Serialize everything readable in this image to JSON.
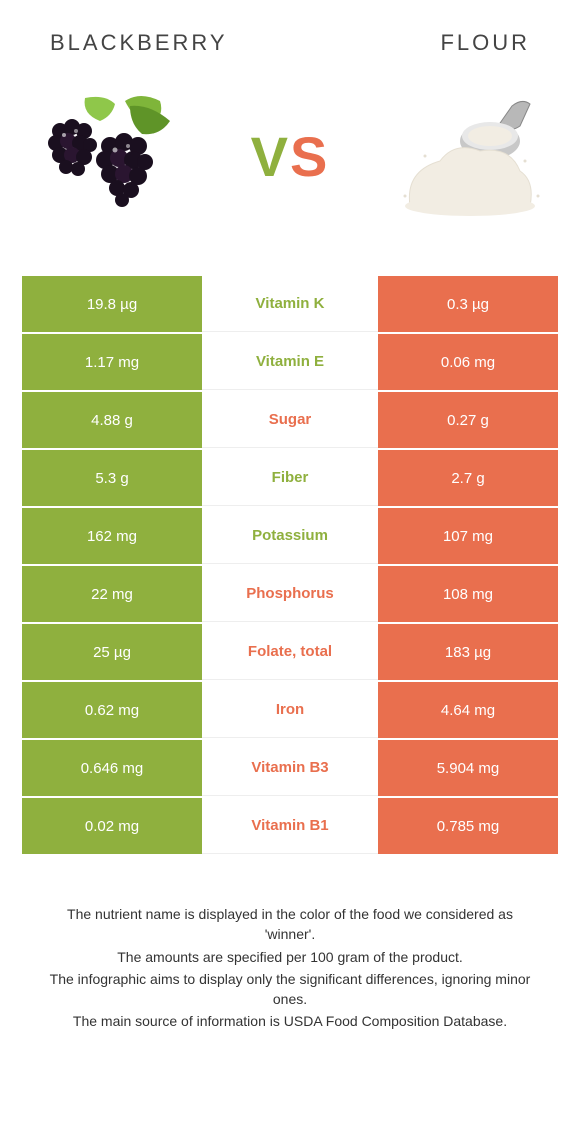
{
  "header": {
    "left_title": "BLACKBERRY",
    "right_title": "FLOUR"
  },
  "vs": {
    "v": "V",
    "s": "S"
  },
  "colors": {
    "left_bg": "#8fb03e",
    "right_bg": "#e96f4e",
    "left_text": "#8fb03e",
    "right_text": "#e96f4e"
  },
  "rows": [
    {
      "left": "19.8 µg",
      "label": "Vitamin K",
      "right": "0.3 µg",
      "winner": "left"
    },
    {
      "left": "1.17 mg",
      "label": "Vitamin E",
      "right": "0.06 mg",
      "winner": "left"
    },
    {
      "left": "4.88 g",
      "label": "Sugar",
      "right": "0.27 g",
      "winner": "right"
    },
    {
      "left": "5.3 g",
      "label": "Fiber",
      "right": "2.7 g",
      "winner": "left"
    },
    {
      "left": "162 mg",
      "label": "Potassium",
      "right": "107 mg",
      "winner": "left"
    },
    {
      "left": "22 mg",
      "label": "Phosphorus",
      "right": "108 mg",
      "winner": "right"
    },
    {
      "left": "25 µg",
      "label": "Folate, total",
      "right": "183 µg",
      "winner": "right"
    },
    {
      "left": "0.62 mg",
      "label": "Iron",
      "right": "4.64 mg",
      "winner": "right"
    },
    {
      "left": "0.646 mg",
      "label": "Vitamin B3",
      "right": "5.904 mg",
      "winner": "right"
    },
    {
      "left": "0.02 mg",
      "label": "Vitamin B1",
      "right": "0.785 mg",
      "winner": "right"
    }
  ],
  "footer": {
    "l1": "The nutrient name is displayed in the color of the food we considered as 'winner'.",
    "l2": "The amounts are specified per 100 gram of the product.",
    "l3": "The infographic aims to display only the significant differences, ignoring minor ones.",
    "l4": "The main source of information is USDA Food Composition Database."
  }
}
